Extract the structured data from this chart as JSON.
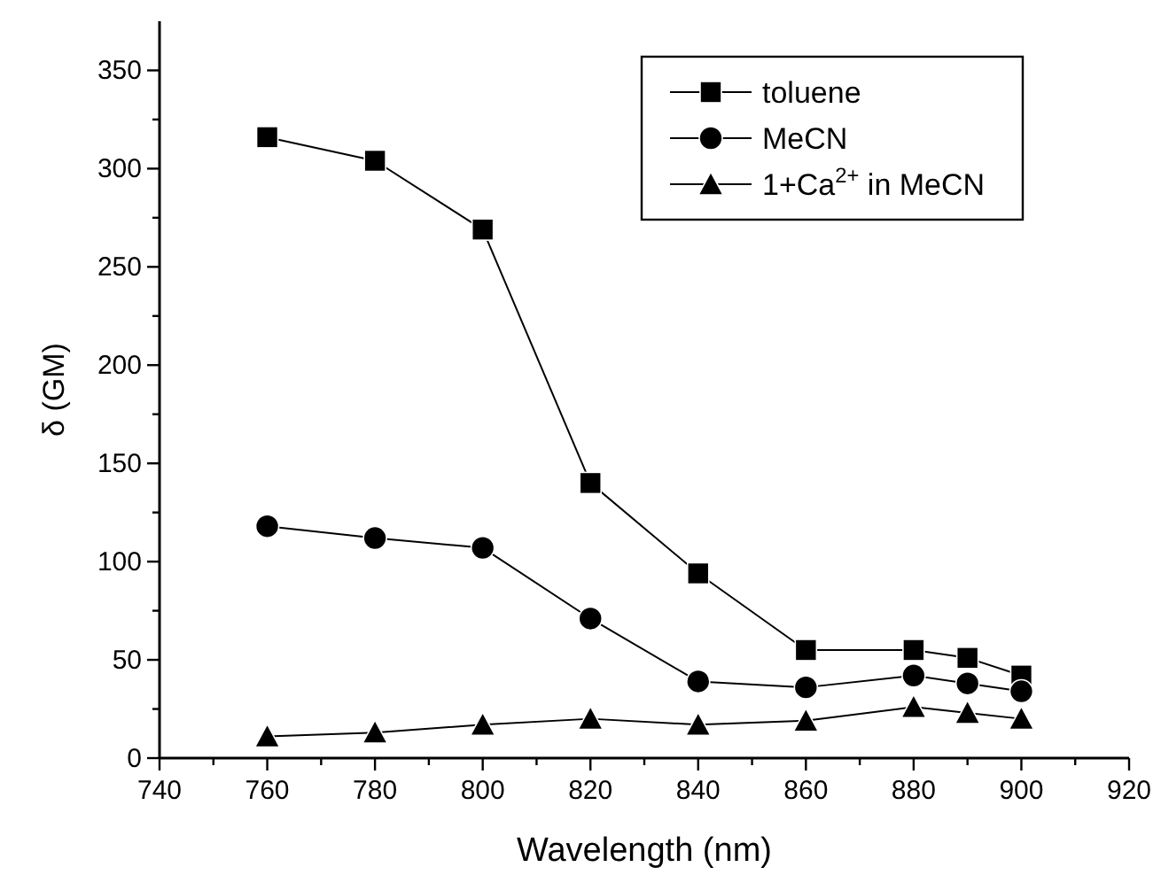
{
  "chart_data": {
    "type": "line",
    "xlabel": "Wavelength (nm)",
    "ylabel": "δ (GM)",
    "x": [
      760,
      780,
      800,
      820,
      840,
      860,
      880,
      890,
      900
    ],
    "series": [
      {
        "name": "toluene",
        "color": "#000000",
        "marker": "square",
        "values": [
          316,
          304,
          269,
          140,
          94,
          55,
          55,
          51,
          42
        ]
      },
      {
        "name": "MeCN",
        "color": "#000000",
        "marker": "circle",
        "values": [
          118,
          112,
          107,
          71,
          39,
          36,
          42,
          38,
          34
        ]
      },
      {
        "name": "1+Ca$^{2+}$ in MeCN",
        "color": "#000000",
        "marker": "triangle",
        "values": [
          11,
          13,
          17,
          20,
          17,
          19,
          26,
          23,
          20
        ]
      }
    ],
    "xlim": [
      740,
      920
    ],
    "xticks": [
      740,
      {
        "value": 750,
        "label": null
      },
      760,
      {
        "value": 770,
        "label": null
      },
      780,
      {
        "value": 790,
        "label": null
      },
      800,
      {
        "value": 810,
        "label": null
      },
      820,
      {
        "value": 830,
        "label": null
      },
      840,
      {
        "value": 850,
        "label": null
      },
      860,
      {
        "value": 870,
        "label": null
      },
      880,
      {
        "value": 890,
        "label": null
      },
      900,
      {
        "value": 910,
        "label": null
      },
      920
    ],
    "ylim": [
      0,
      375
    ],
    "yticks": [
      0,
      {
        "value": 25,
        "label": null
      },
      50,
      {
        "value": 75,
        "label": null
      },
      100,
      {
        "value": 125,
        "label": null
      },
      150,
      {
        "value": 175,
        "label": null
      },
      200,
      {
        "value": 225,
        "label": null
      },
      250,
      {
        "value": 275,
        "label": null
      },
      300,
      {
        "value": 325,
        "label": null
      },
      350
    ],
    "grid": false,
    "legend": "top right",
    "line_style": "solid"
  }
}
